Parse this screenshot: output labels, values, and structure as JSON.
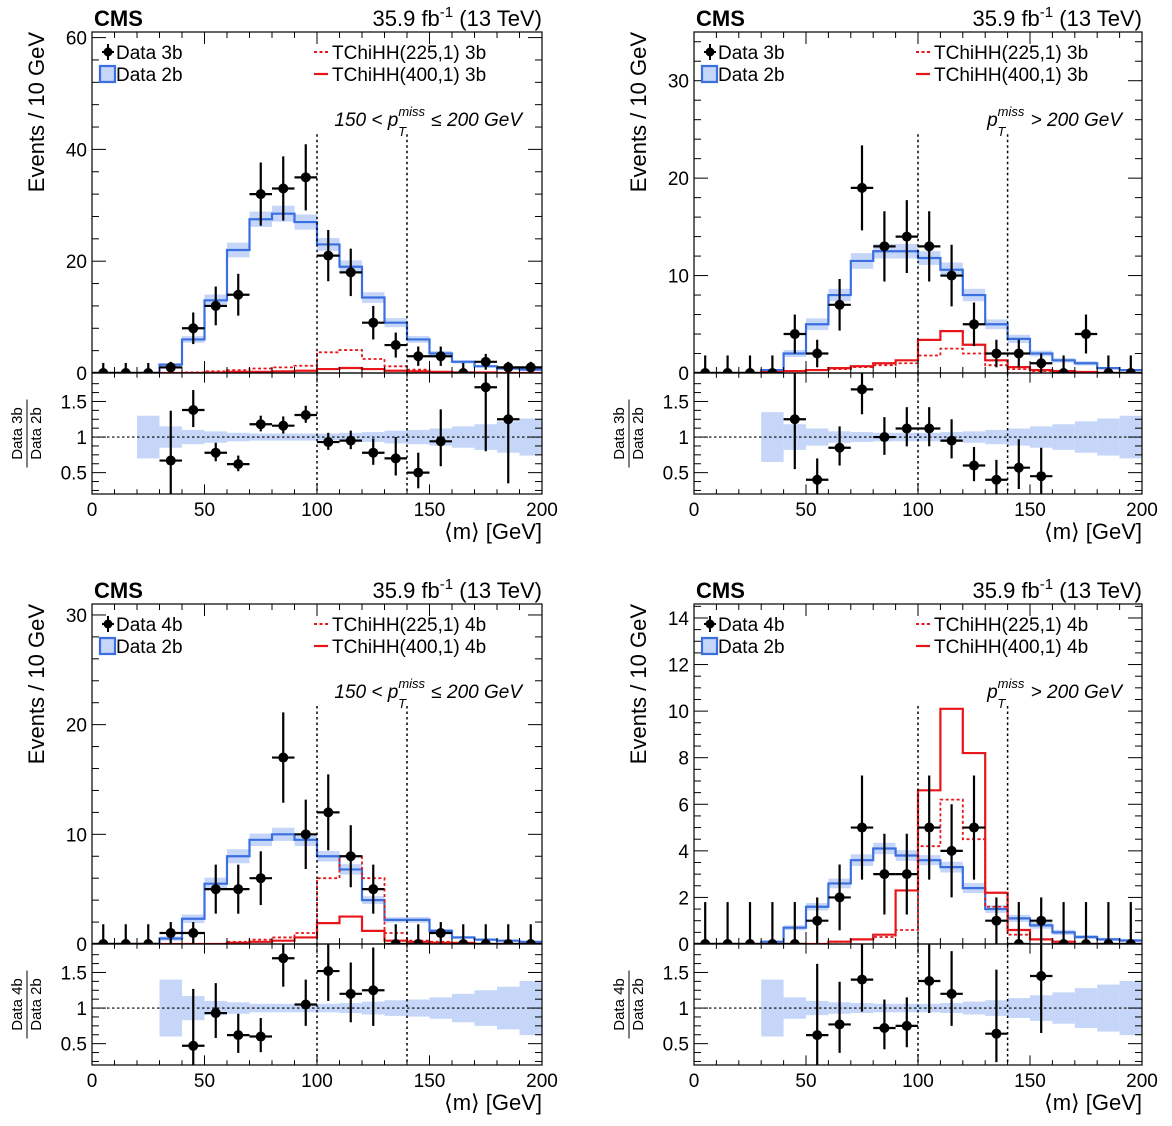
{
  "chart_data": [
    {
      "type": "histogram",
      "header": {
        "experiment": "CMS",
        "lumi": "35.9 fb",
        "lumi_sup": "-1",
        "energy": "(13 TeV)"
      },
      "ylabel": "Events / 10 GeV",
      "xlabel": "⟨m⟩ [GeV]",
      "ratio_label": {
        "numerator": "Data 3b",
        "denominator": "Data 2b"
      },
      "region_label": {
        "prefix": "150 < ",
        "var": "p",
        "sup": "miss",
        "sub": "T",
        "suffix": " ≤ 200 GeV"
      },
      "xlim": [
        0,
        200
      ],
      "ylim": [
        0,
        61
      ],
      "ratio_ylim": [
        0.2,
        1.9
      ],
      "xticks": [
        0,
        50,
        100,
        150,
        200
      ],
      "yticks": [
        0,
        20,
        40,
        60
      ],
      "ratio_yticks": [
        0.5,
        1,
        1.5
      ],
      "vlines": [
        100,
        140
      ],
      "legend": [
        {
          "label": "Data 3b",
          "style": "data"
        },
        {
          "label": "Data 2b",
          "style": "blue"
        },
        {
          "label": "TChiHH(225,1) 3b",
          "style": "reddash"
        },
        {
          "label": "TChiHH(400,1) 3b",
          "style": "redsolid"
        }
      ],
      "bin_edges": [
        0,
        10,
        20,
        30,
        40,
        50,
        60,
        70,
        80,
        90,
        100,
        110,
        120,
        130,
        140,
        150,
        160,
        170,
        180,
        190,
        200
      ],
      "data": [
        0,
        0,
        0,
        1,
        8,
        12,
        14,
        32,
        33,
        35,
        21,
        18,
        9,
        5,
        3,
        3,
        0,
        2,
        1,
        1
      ],
      "bkg": [
        0,
        0,
        0,
        1.5,
        6,
        13,
        22,
        27.5,
        28.5,
        27,
        23,
        19,
        13.5,
        9,
        6,
        3.5,
        2,
        1.2,
        0.8,
        0.6
      ],
      "bkg_rel_unc": [
        0,
        0,
        0.3,
        0.15,
        0.1,
        0.08,
        0.06,
        0.05,
        0.05,
        0.05,
        0.05,
        0.06,
        0.07,
        0.09,
        0.1,
        0.12,
        0.15,
        0.18,
        0.22,
        0.26
      ],
      "sig225": [
        0,
        0,
        0,
        0,
        0.1,
        0.3,
        0.5,
        0.8,
        1,
        1.3,
        3.7,
        4.1,
        2.5,
        1.2,
        0.6,
        0.2,
        0.1,
        0,
        0,
        0
      ],
      "sig400": [
        0,
        0,
        0,
        0,
        0,
        0.1,
        0.2,
        0.2,
        0.3,
        0.4,
        0.7,
        0.9,
        0.7,
        0.4,
        0.3,
        0.2,
        0.1,
        0.1,
        0,
        0
      ],
      "ratio": [
        null,
        null,
        null,
        0.67,
        1.38,
        0.78,
        0.62,
        1.18,
        1.16,
        1.31,
        0.93,
        0.95,
        0.78,
        0.7,
        0.5,
        0.94,
        null,
        1.7,
        1.25,
        null
      ],
      "ratio_err_up": [
        0,
        0,
        0,
        0.7,
        0.28,
        0.14,
        0.12,
        0.12,
        0.13,
        0.13,
        0.13,
        0.14,
        0.2,
        0.3,
        0.28,
        0.45,
        0,
        1,
        1,
        0
      ],
      "ratio_err_dn": [
        0,
        0,
        0,
        0.6,
        0.24,
        0.12,
        0.1,
        0.1,
        0.11,
        0.11,
        0.11,
        0.12,
        0.17,
        0.24,
        0.22,
        0.35,
        0,
        0.9,
        0.9,
        0
      ]
    },
    {
      "type": "histogram",
      "header": {
        "experiment": "CMS",
        "lumi": "35.9 fb",
        "lumi_sup": "-1",
        "energy": "(13 TeV)"
      },
      "ylabel": "Events / 10 GeV",
      "xlabel": "⟨m⟩ [GeV]",
      "ratio_label": {
        "numerator": "Data 3b",
        "denominator": "Data 2b"
      },
      "region_label": {
        "prefix": "",
        "var": "p",
        "sup": "miss",
        "sub": "T",
        "suffix": " > 200 GeV"
      },
      "xlim": [
        0,
        200
      ],
      "ylim": [
        0,
        35
      ],
      "ratio_ylim": [
        0.2,
        1.9
      ],
      "xticks": [
        0,
        50,
        100,
        150,
        200
      ],
      "yticks": [
        0,
        10,
        20,
        30
      ],
      "ratio_yticks": [
        0.5,
        1,
        1.5
      ],
      "vlines": [
        100,
        140
      ],
      "legend": [
        {
          "label": "Data 3b",
          "style": "data"
        },
        {
          "label": "Data 2b",
          "style": "blue"
        },
        {
          "label": "TChiHH(225,1) 3b",
          "style": "reddash"
        },
        {
          "label": "TChiHH(400,1) 3b",
          "style": "redsolid"
        }
      ],
      "bin_edges": [
        0,
        10,
        20,
        30,
        40,
        50,
        60,
        70,
        80,
        90,
        100,
        110,
        120,
        130,
        140,
        150,
        160,
        170,
        180,
        190,
        200
      ],
      "data": [
        0,
        0,
        0,
        0,
        4,
        2,
        7,
        19,
        13,
        14,
        13,
        10,
        5,
        2,
        2,
        1,
        0,
        4,
        0,
        0
      ],
      "bkg": [
        0,
        0,
        0,
        0.3,
        2,
        5,
        8,
        11.5,
        12.5,
        12.5,
        11.8,
        10.6,
        8,
        5,
        3.5,
        2,
        1.3,
        1,
        0.5,
        0.3
      ],
      "bkg_rel_unc": [
        0,
        0,
        0,
        0.35,
        0.18,
        0.12,
        0.08,
        0.07,
        0.06,
        0.06,
        0.06,
        0.07,
        0.08,
        0.1,
        0.12,
        0.15,
        0.18,
        0.22,
        0.26,
        0.3
      ],
      "sig225": [
        0,
        0,
        0,
        0,
        0.2,
        0.3,
        0.4,
        0.6,
        0.8,
        1,
        1.8,
        2.5,
        2,
        0.8,
        0.4,
        0.2,
        0.1,
        0,
        0,
        0
      ],
      "sig400": [
        0,
        0,
        0,
        0.1,
        0.2,
        0.3,
        0.5,
        0.7,
        1,
        1.3,
        3.4,
        4.3,
        2.9,
        1.3,
        0.6,
        0.3,
        0.2,
        0.1,
        0,
        0
      ],
      "ratio": [
        null,
        null,
        null,
        null,
        1.25,
        0.4,
        0.85,
        1.67,
        1.0,
        1.12,
        1.12,
        0.95,
        0.6,
        0.4,
        0.57,
        0.45,
        null,
        null,
        null,
        null
      ],
      "ratio_err_up": [
        0,
        0,
        0,
        0,
        0.8,
        0.3,
        0.3,
        0.4,
        0.28,
        0.3,
        0.3,
        0.3,
        0.26,
        0.28,
        0.4,
        0.4,
        0,
        0,
        0,
        0
      ],
      "ratio_err_dn": [
        0,
        0,
        0,
        0,
        0.7,
        0.25,
        0.25,
        0.35,
        0.25,
        0.25,
        0.25,
        0.25,
        0.22,
        0.22,
        0.3,
        0.3,
        0,
        0,
        0,
        0
      ]
    },
    {
      "type": "histogram",
      "header": {
        "experiment": "CMS",
        "lumi": "35.9 fb",
        "lumi_sup": "-1",
        "energy": "(13 TeV)"
      },
      "ylabel": "Events / 10 GeV",
      "xlabel": "⟨m⟩ [GeV]",
      "ratio_label": {
        "numerator": "Data 4b",
        "denominator": "Data 2b"
      },
      "region_label": {
        "prefix": "150 < ",
        "var": "p",
        "sup": "miss",
        "sub": "T",
        "suffix": " ≤ 200 GeV"
      },
      "xlim": [
        0,
        200
      ],
      "ylim": [
        0,
        31
      ],
      "ratio_ylim": [
        0.2,
        1.9
      ],
      "xticks": [
        0,
        50,
        100,
        150,
        200
      ],
      "yticks": [
        0,
        10,
        20,
        30
      ],
      "ratio_yticks": [
        0.5,
        1,
        1.5
      ],
      "vlines": [
        100,
        140
      ],
      "legend": [
        {
          "label": "Data 4b",
          "style": "data"
        },
        {
          "label": "Data 2b",
          "style": "blue"
        },
        {
          "label": "TChiHH(225,1) 4b",
          "style": "reddash"
        },
        {
          "label": "TChiHH(400,1) 4b",
          "style": "redsolid"
        }
      ],
      "bin_edges": [
        0,
        10,
        20,
        30,
        40,
        50,
        60,
        70,
        80,
        90,
        100,
        110,
        120,
        130,
        140,
        150,
        160,
        170,
        180,
        190,
        200
      ],
      "data": [
        0,
        0,
        0,
        1,
        1,
        5,
        5,
        6,
        17,
        10,
        12,
        8,
        5,
        0,
        0,
        1,
        0,
        0,
        0,
        0
      ],
      "bkg": [
        0,
        0,
        0,
        0.5,
        2.3,
        5.5,
        8,
        9.5,
        10,
        9.5,
        8,
        6.8,
        4,
        2.2,
        2.2,
        1.2,
        0.6,
        0.4,
        0.3,
        0.2
      ],
      "bkg_rel_unc": [
        0,
        0,
        0,
        0.4,
        0.17,
        0.1,
        0.08,
        0.06,
        0.06,
        0.06,
        0.06,
        0.07,
        0.09,
        0.11,
        0.12,
        0.15,
        0.2,
        0.25,
        0.3,
        0.38
      ],
      "sig225": [
        0,
        0,
        0,
        0,
        0,
        0,
        0.2,
        0.4,
        0.6,
        1,
        6,
        8,
        6,
        1,
        0.3,
        0.2,
        0.1,
        0,
        0,
        0
      ],
      "sig400": [
        0,
        0,
        0,
        0,
        0,
        0,
        0.1,
        0.2,
        0.3,
        0.6,
        1.9,
        2.5,
        1.2,
        0.3,
        0.2,
        0.1,
        0.1,
        0,
        0,
        0
      ],
      "ratio": [
        null,
        null,
        null,
        null,
        0.47,
        0.93,
        0.62,
        0.6,
        1.7,
        1.05,
        1.52,
        1.2,
        1.25,
        null,
        null,
        null,
        null,
        null,
        null,
        null
      ],
      "ratio_err_up": [
        0,
        0,
        0,
        0,
        0.8,
        0.42,
        0.3,
        0.26,
        0.45,
        0.35,
        0.46,
        0.44,
        0.6,
        0,
        0,
        0,
        0,
        0,
        0,
        0
      ],
      "ratio_err_dn": [
        0,
        0,
        0,
        0,
        0.4,
        0.35,
        0.25,
        0.22,
        0.4,
        0.3,
        0.42,
        0.4,
        0.5,
        0,
        0,
        0,
        0,
        0,
        0,
        0
      ]
    },
    {
      "type": "histogram",
      "header": {
        "experiment": "CMS",
        "lumi": "35.9 fb",
        "lumi_sup": "-1",
        "energy": "(13 TeV)"
      },
      "ylabel": "Events / 10 GeV",
      "xlabel": "⟨m⟩ [GeV]",
      "ratio_label": {
        "numerator": "Data 4b",
        "denominator": "Data 2b"
      },
      "region_label": {
        "prefix": "",
        "var": "p",
        "sup": "miss",
        "sub": "T",
        "suffix": " > 200 GeV"
      },
      "xlim": [
        0,
        200
      ],
      "ylim": [
        0,
        14.6
      ],
      "ratio_ylim": [
        0.2,
        1.9
      ],
      "xticks": [
        0,
        50,
        100,
        150,
        200
      ],
      "yticks": [
        0,
        2,
        4,
        6,
        8,
        10,
        12,
        14
      ],
      "ratio_yticks": [
        0.5,
        1,
        1.5
      ],
      "vlines": [
        100,
        140
      ],
      "legend": [
        {
          "label": "Data 4b",
          "style": "data"
        },
        {
          "label": "Data 2b",
          "style": "blue"
        },
        {
          "label": "TChiHH(225,1) 4b",
          "style": "reddash"
        },
        {
          "label": "TChiHH(400,1) 4b",
          "style": "redsolid"
        }
      ],
      "bin_edges": [
        0,
        10,
        20,
        30,
        40,
        50,
        60,
        70,
        80,
        90,
        100,
        110,
        120,
        130,
        140,
        150,
        160,
        170,
        180,
        190,
        200
      ],
      "data": [
        0,
        0,
        0,
        0,
        0,
        1,
        2,
        5,
        3,
        3,
        5,
        4,
        5,
        1,
        0,
        1,
        0,
        0,
        0,
        0
      ],
      "bkg": [
        0,
        0,
        0,
        0.1,
        0.7,
        1.6,
        2.6,
        3.6,
        4.1,
        3.8,
        3.6,
        3.3,
        2.4,
        1.5,
        1.1,
        0.8,
        0.5,
        0.3,
        0.2,
        0.15
      ],
      "bkg_rel_unc": [
        0,
        0,
        0,
        0.4,
        0.15,
        0.1,
        0.08,
        0.07,
        0.06,
        0.06,
        0.06,
        0.07,
        0.09,
        0.11,
        0.14,
        0.18,
        0.22,
        0.28,
        0.33,
        0.38
      ],
      "sig225": [
        0,
        0,
        0,
        0,
        0,
        0,
        0.1,
        0.2,
        0.3,
        0.6,
        4.2,
        6.2,
        4.5,
        1.6,
        0.4,
        0.2,
        0.1,
        0,
        0,
        0
      ],
      "sig400": [
        0,
        0,
        0,
        0,
        0,
        0,
        0.1,
        0.2,
        0.4,
        2.3,
        6.6,
        10.1,
        8.2,
        2.2,
        0.6,
        0.2,
        0.1,
        0,
        0,
        0
      ],
      "ratio": [
        null,
        null,
        null,
        null,
        null,
        0.62,
        0.77,
        1.4,
        0.72,
        0.75,
        1.38,
        1.2,
        null,
        0.64,
        null,
        1.45,
        null,
        null,
        null,
        null
      ],
      "ratio_err_up": [
        0,
        0,
        0,
        0,
        0,
        1.0,
        0.6,
        0.6,
        0.4,
        0.4,
        0.6,
        0.6,
        0,
        0.9,
        0,
        1.2,
        0,
        0,
        0,
        0
      ],
      "ratio_err_dn": [
        0,
        0,
        0,
        0,
        0,
        0.5,
        0.4,
        0.45,
        0.3,
        0.3,
        0.45,
        0.45,
        0,
        0.4,
        0,
        0.8,
        0,
        0,
        0,
        0
      ]
    }
  ]
}
